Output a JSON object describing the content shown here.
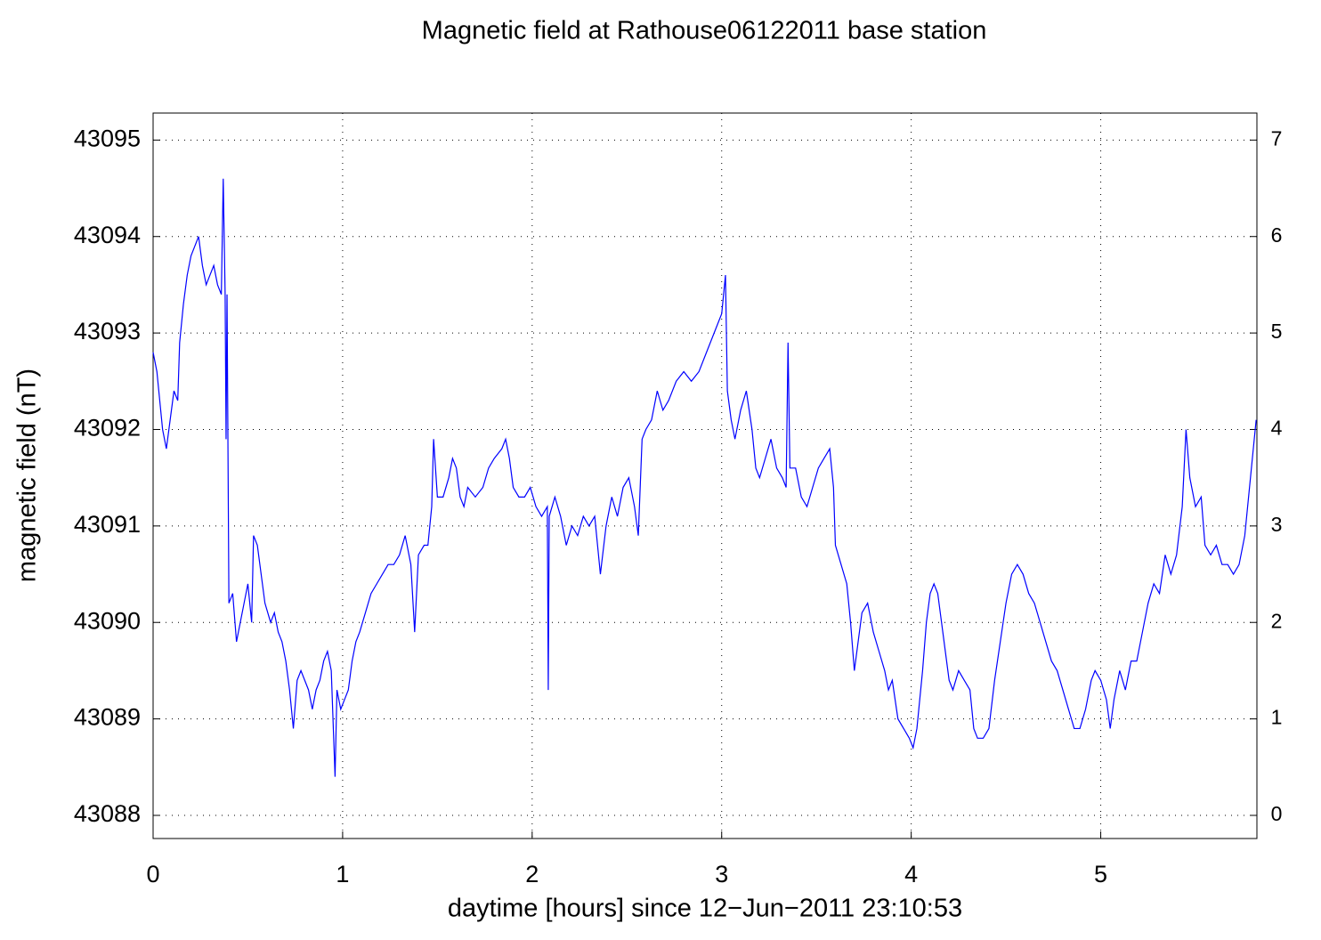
{
  "chart_data": {
    "type": "line",
    "title": "Magnetic field at Rathouse06122011 base station",
    "x_label": "daytime [hours] since 12−Jun−2011 23:10:53",
    "y_label": "magnetic field (nT)",
    "color": "#0000ff",
    "grid": true,
    "xlim": [
      0,
      5.824
    ],
    "xticks": [
      0,
      1,
      2,
      3,
      4,
      5
    ],
    "ylim": [
      43087.76,
      43095.28
    ],
    "yticks": [
      43088,
      43089,
      43090,
      43091,
      43092,
      43093,
      43094,
      43095
    ],
    "y2lim": [
      -0.24,
      7.28
    ],
    "y2ticks": [
      0,
      1,
      2,
      3,
      4,
      5,
      6,
      7
    ],
    "x": [
      0.0,
      0.02,
      0.04,
      0.05,
      0.07,
      0.09,
      0.11,
      0.13,
      0.14,
      0.16,
      0.18,
      0.2,
      0.22,
      0.24,
      0.26,
      0.28,
      0.3,
      0.32,
      0.34,
      0.36,
      0.37,
      0.38,
      0.385,
      0.39,
      0.4,
      0.42,
      0.44,
      0.46,
      0.48,
      0.5,
      0.52,
      0.53,
      0.55,
      0.57,
      0.59,
      0.62,
      0.64,
      0.66,
      0.68,
      0.7,
      0.72,
      0.74,
      0.76,
      0.78,
      0.8,
      0.82,
      0.84,
      0.86,
      0.88,
      0.9,
      0.92,
      0.94,
      0.96,
      0.97,
      0.99,
      1.01,
      1.03,
      1.05,
      1.07,
      1.09,
      1.12,
      1.15,
      1.18,
      1.21,
      1.24,
      1.27,
      1.3,
      1.33,
      1.36,
      1.38,
      1.4,
      1.43,
      1.45,
      1.47,
      1.48,
      1.5,
      1.53,
      1.56,
      1.58,
      1.6,
      1.62,
      1.64,
      1.66,
      1.7,
      1.74,
      1.77,
      1.8,
      1.84,
      1.86,
      1.88,
      1.9,
      1.93,
      1.96,
      1.99,
      2.02,
      2.05,
      2.08,
      2.085,
      2.09,
      2.12,
      2.15,
      2.18,
      2.21,
      2.24,
      2.27,
      2.3,
      2.33,
      2.36,
      2.39,
      2.42,
      2.45,
      2.48,
      2.51,
      2.54,
      2.56,
      2.58,
      2.6,
      2.63,
      2.66,
      2.69,
      2.72,
      2.76,
      2.8,
      2.84,
      2.88,
      2.92,
      2.96,
      3.0,
      3.02,
      3.03,
      3.05,
      3.07,
      3.1,
      3.13,
      3.16,
      3.18,
      3.2,
      3.23,
      3.26,
      3.29,
      3.32,
      3.34,
      3.35,
      3.36,
      3.39,
      3.42,
      3.45,
      3.48,
      3.51,
      3.54,
      3.57,
      3.59,
      3.6,
      3.63,
      3.66,
      3.68,
      3.7,
      3.72,
      3.74,
      3.77,
      3.8,
      3.83,
      3.86,
      3.88,
      3.9,
      3.93,
      3.96,
      3.99,
      4.01,
      4.03,
      4.06,
      4.08,
      4.1,
      4.12,
      4.14,
      4.16,
      4.18,
      4.2,
      4.22,
      4.25,
      4.28,
      4.31,
      4.33,
      4.35,
      4.38,
      4.41,
      4.44,
      4.47,
      4.5,
      4.53,
      4.56,
      4.59,
      4.62,
      4.65,
      4.68,
      4.71,
      4.74,
      4.77,
      4.8,
      4.83,
      4.86,
      4.89,
      4.92,
      4.95,
      4.97,
      5.0,
      5.03,
      5.05,
      5.07,
      5.1,
      5.13,
      5.16,
      5.19,
      5.22,
      5.25,
      5.28,
      5.31,
      5.34,
      5.37,
      5.4,
      5.43,
      5.45,
      5.47,
      5.5,
      5.53,
      5.55,
      5.58,
      5.61,
      5.64,
      5.67,
      5.7,
      5.73,
      5.76,
      5.79,
      5.82
    ],
    "values": [
      43092.8,
      43092.6,
      43092.2,
      43092.0,
      43091.8,
      43092.1,
      43092.4,
      43092.3,
      43092.9,
      43093.3,
      43093.6,
      43093.8,
      43093.9,
      43094.0,
      43093.7,
      43093.5,
      43093.6,
      43093.7,
      43093.5,
      43093.4,
      43094.6,
      43093.4,
      43091.9,
      43093.4,
      43090.2,
      43090.3,
      43089.8,
      43090.0,
      43090.2,
      43090.4,
      43090.0,
      43090.9,
      43090.8,
      43090.5,
      43090.2,
      43090.0,
      43090.1,
      43089.9,
      43089.8,
      43089.6,
      43089.3,
      43088.9,
      43089.4,
      43089.5,
      43089.4,
      43089.3,
      43089.1,
      43089.3,
      43089.4,
      43089.6,
      43089.7,
      43089.5,
      43088.4,
      43089.3,
      43089.1,
      43089.2,
      43089.3,
      43089.6,
      43089.8,
      43089.9,
      43090.1,
      43090.3,
      43090.4,
      43090.5,
      43090.6,
      43090.6,
      43090.7,
      43090.9,
      43090.6,
      43089.9,
      43090.7,
      43090.8,
      43090.8,
      43091.2,
      43091.9,
      43091.3,
      43091.3,
      43091.5,
      43091.7,
      43091.6,
      43091.3,
      43091.2,
      43091.4,
      43091.3,
      43091.4,
      43091.6,
      43091.7,
      43091.8,
      43091.9,
      43091.7,
      43091.4,
      43091.3,
      43091.3,
      43091.4,
      43091.2,
      43091.1,
      43091.2,
      43089.3,
      43091.1,
      43091.3,
      43091.1,
      43090.8,
      43091.0,
      43090.9,
      43091.1,
      43091.0,
      43091.1,
      43090.5,
      43091.0,
      43091.3,
      43091.1,
      43091.4,
      43091.5,
      43091.2,
      43090.9,
      43091.9,
      43092.0,
      43092.1,
      43092.4,
      43092.2,
      43092.3,
      43092.5,
      43092.6,
      43092.5,
      43092.6,
      43092.8,
      43093.0,
      43093.2,
      43093.6,
      43092.4,
      43092.1,
      43091.9,
      43092.2,
      43092.4,
      43092.0,
      43091.6,
      43091.5,
      43091.7,
      43091.9,
      43091.6,
      43091.5,
      43091.4,
      43092.9,
      43091.6,
      43091.6,
      43091.3,
      43091.2,
      43091.4,
      43091.6,
      43091.7,
      43091.8,
      43091.4,
      43090.8,
      43090.6,
      43090.4,
      43090.0,
      43089.5,
      43089.8,
      43090.1,
      43090.2,
      43089.9,
      43089.7,
      43089.5,
      43089.3,
      43089.4,
      43089.0,
      43088.9,
      43088.8,
      43088.7,
      43088.9,
      43089.5,
      43090.0,
      43090.3,
      43090.4,
      43090.3,
      43090.0,
      43089.7,
      43089.4,
      43089.3,
      43089.5,
      43089.4,
      43089.3,
      43088.9,
      43088.8,
      43088.8,
      43088.9,
      43089.4,
      43089.8,
      43090.2,
      43090.5,
      43090.6,
      43090.5,
      43090.3,
      43090.2,
      43090.0,
      43089.8,
      43089.6,
      43089.5,
      43089.3,
      43089.1,
      43088.9,
      43088.9,
      43089.1,
      43089.4,
      43089.5,
      43089.4,
      43089.2,
      43088.9,
      43089.2,
      43089.5,
      43089.3,
      43089.6,
      43089.6,
      43089.9,
      43090.2,
      43090.4,
      43090.3,
      43090.7,
      43090.5,
      43090.7,
      43091.2,
      43092.0,
      43091.5,
      43091.2,
      43091.3,
      43090.8,
      43090.7,
      43090.8,
      43090.6,
      43090.6,
      43090.5,
      43090.6,
      43090.9,
      43091.5,
      43092.1
    ]
  }
}
